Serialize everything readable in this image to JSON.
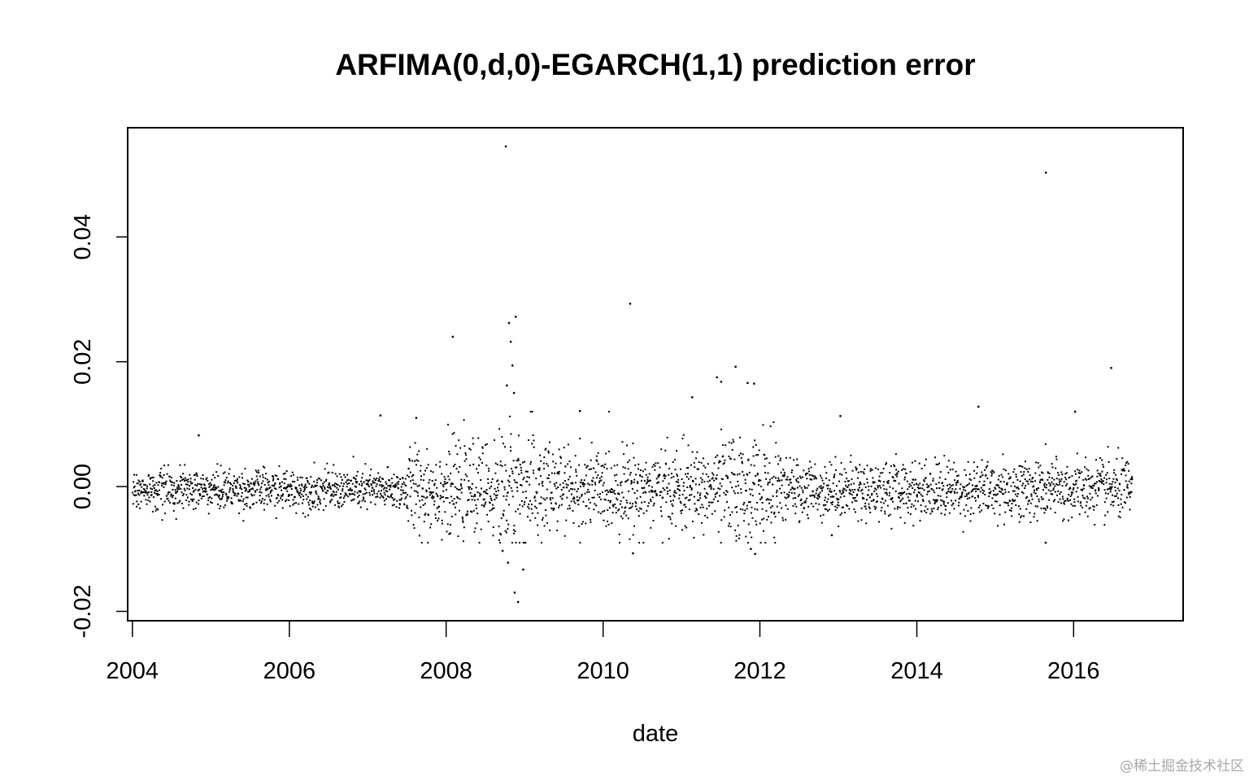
{
  "watermark": "@稀土掘金技术社区",
  "chart_data": {
    "type": "scatter",
    "title": "ARFIMA(0,d,0)-EGARCH(1,1) prediction error",
    "xlabel": "date",
    "ylabel": "",
    "xlim": [
      "2003-12-10",
      "2017-05-25"
    ],
    "ylim": [
      -0.0215,
      0.0575
    ],
    "x_ticks": [
      "2004",
      "2006",
      "2008",
      "2010",
      "2012",
      "2014",
      "2016"
    ],
    "y_ticks": [
      "-0.02",
      "0.00",
      "0.02",
      "0.04"
    ],
    "x_range": [
      "2004-01-02",
      "2016-09-30"
    ],
    "grid": false,
    "legend": "none",
    "marker": "point",
    "bulk_noise_envelope": [
      {
        "from": "2004-01",
        "to": "2007-06",
        "sd": 0.0016
      },
      {
        "from": "2007-07",
        "to": "2008-08",
        "sd": 0.0035
      },
      {
        "from": "2008-09",
        "to": "2009-04",
        "sd": 0.005
      },
      {
        "from": "2009-05",
        "to": "2011-06",
        "sd": 0.0032
      },
      {
        "from": "2011-07",
        "to": "2012-03",
        "sd": 0.0042
      },
      {
        "from": "2012-04",
        "to": "2014-12",
        "sd": 0.0023
      },
      {
        "from": "2015-01",
        "to": "2016-09",
        "sd": 0.0024
      }
    ],
    "notable_points": [
      {
        "x": "2008-10-05",
        "y": 0.0545
      },
      {
        "x": "2015-08-25",
        "y": 0.0503
      },
      {
        "x": "2010-05-07",
        "y": 0.0293
      },
      {
        "x": "2008-11-20",
        "y": 0.0272
      },
      {
        "x": "2008-10-20",
        "y": 0.0262
      },
      {
        "x": "2008-02-01",
        "y": 0.024
      },
      {
        "x": "2008-10-28",
        "y": 0.0232
      },
      {
        "x": "2008-11-05",
        "y": 0.0194
      },
      {
        "x": "2011-09-10",
        "y": 0.0192
      },
      {
        "x": "2016-06-24",
        "y": 0.019
      },
      {
        "x": "2011-06-15",
        "y": 0.0175
      },
      {
        "x": "2011-07-05",
        "y": 0.0168
      },
      {
        "x": "2011-11-05",
        "y": 0.0166
      },
      {
        "x": "2011-12-05",
        "y": 0.0165
      },
      {
        "x": "2008-10-10",
        "y": 0.0162
      },
      {
        "x": "2008-11-12",
        "y": 0.015
      },
      {
        "x": "2011-02-20",
        "y": 0.0143
      },
      {
        "x": "2014-10-15",
        "y": 0.0128
      },
      {
        "x": "2009-09-15",
        "y": 0.0121
      },
      {
        "x": "2016-01-08",
        "y": 0.012
      },
      {
        "x": "2007-03-01",
        "y": 0.0114
      },
      {
        "x": "2007-08-15",
        "y": 0.011
      },
      {
        "x": "2013-01-10",
        "y": 0.0113
      },
      {
        "x": "2004-11-05",
        "y": 0.0082
      },
      {
        "x": "2008-09-20",
        "y": -0.0103
      },
      {
        "x": "2010-05-20",
        "y": -0.0107
      },
      {
        "x": "2011-11-20",
        "y": -0.01
      },
      {
        "x": "2011-12-10",
        "y": -0.0108
      },
      {
        "x": "2008-10-15",
        "y": -0.0122
      },
      {
        "x": "2008-12-25",
        "y": -0.0133
      },
      {
        "x": "2008-11-15",
        "y": -0.017
      },
      {
        "x": "2008-12-01",
        "y": -0.0185
      },
      {
        "x": "2015-08-24",
        "y": -0.009
      },
      {
        "x": "2008-01-20",
        "y": -0.0075
      },
      {
        "x": "2012-12-01",
        "y": -0.0078
      }
    ]
  }
}
